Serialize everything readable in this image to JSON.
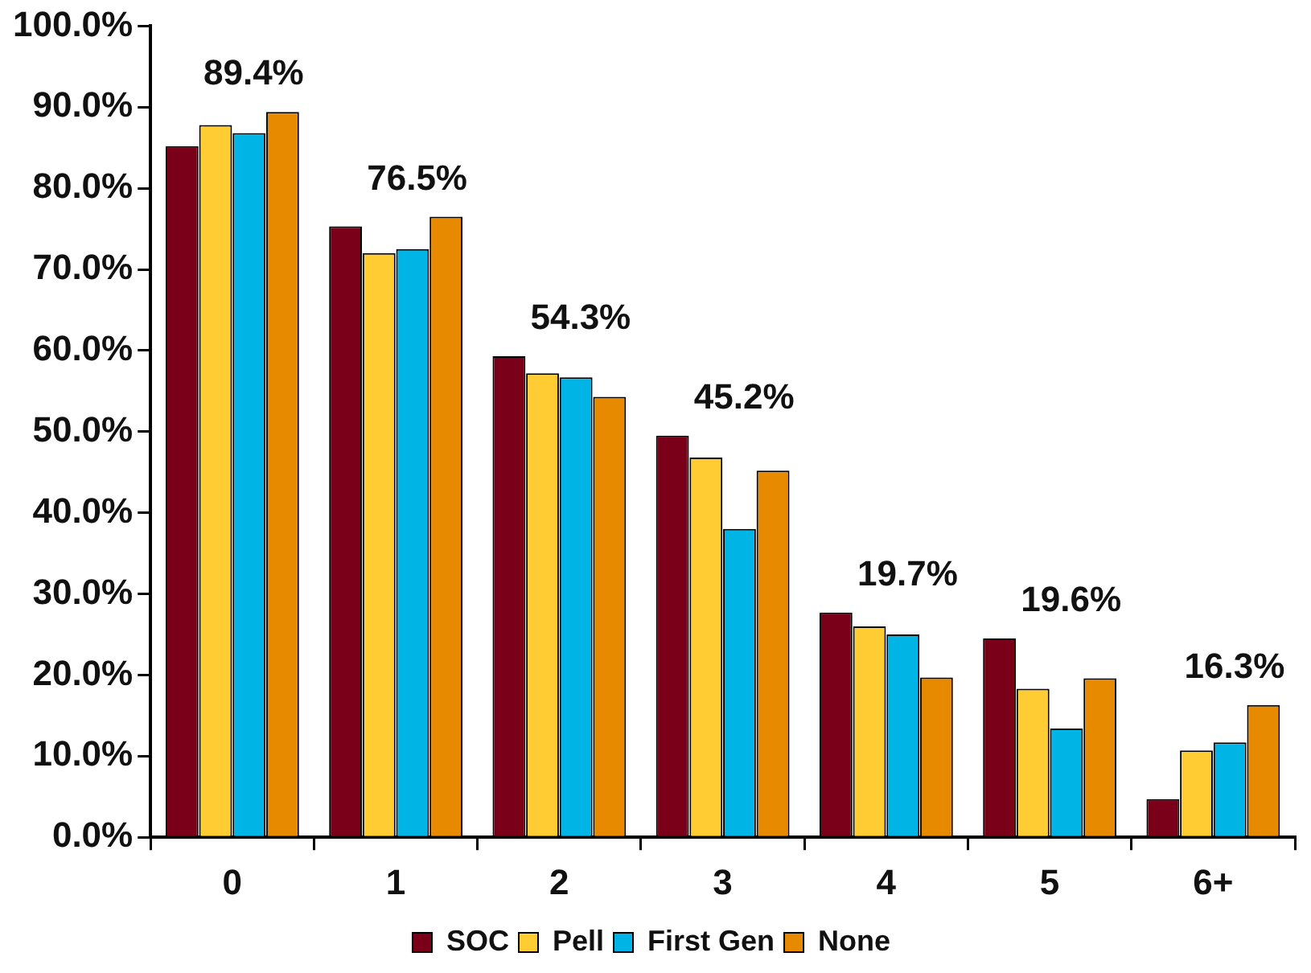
{
  "chart_data": {
    "type": "bar",
    "categories": [
      "0",
      "1",
      "2",
      "3",
      "4",
      "5",
      "6+"
    ],
    "series": [
      {
        "name": "SOC",
        "color": "#7a0019",
        "values": [
          85.2,
          75.3,
          59.3,
          49.5,
          27.7,
          24.5,
          4.7
        ]
      },
      {
        "name": "Pell",
        "color": "#ffcc33",
        "values": [
          87.8,
          72.0,
          57.2,
          46.8,
          26.0,
          18.3,
          10.7
        ]
      },
      {
        "name": "First Gen",
        "color": "#00b4e6",
        "values": [
          86.8,
          72.5,
          56.7,
          38.0,
          25.0,
          13.4,
          11.7
        ]
      },
      {
        "name": "None",
        "color": "#e88a00",
        "values": [
          89.4,
          76.5,
          54.3,
          45.2,
          19.7,
          19.6,
          16.3
        ],
        "value_labels": [
          "89.4%",
          "76.5%",
          "54.3%",
          "45.2%",
          "19.7%",
          "19.6%",
          "16.3%"
        ]
      }
    ],
    "ylim": [
      0,
      100
    ],
    "yticks": [
      {
        "value": 0,
        "label": "0.0%"
      },
      {
        "value": 10,
        "label": "10.0%"
      },
      {
        "value": 20,
        "label": "20.0%"
      },
      {
        "value": 30,
        "label": "30.0%"
      },
      {
        "value": 40,
        "label": "40.0%"
      },
      {
        "value": 50,
        "label": "50.0%"
      },
      {
        "value": 60,
        "label": "60.0%"
      },
      {
        "value": 70,
        "label": "70.0%"
      },
      {
        "value": 80,
        "label": "80.0%"
      },
      {
        "value": 90,
        "label": "90.0%"
      },
      {
        "value": 100,
        "label": "100.0%"
      }
    ],
    "grid": false,
    "legend": "bottom"
  }
}
